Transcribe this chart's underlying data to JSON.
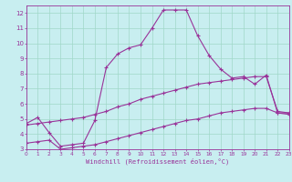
{
  "xlabel": "Windchill (Refroidissement éolien,°C)",
  "background_color": "#c8eef0",
  "grid_color": "#a0d8c8",
  "line_color": "#993399",
  "spine_color": "#993399",
  "xlim": [
    0,
    23
  ],
  "ylim": [
    3,
    12.5
  ],
  "xticks": [
    0,
    1,
    2,
    3,
    4,
    5,
    6,
    7,
    8,
    9,
    10,
    11,
    12,
    13,
    14,
    15,
    16,
    17,
    18,
    19,
    20,
    21,
    22,
    23
  ],
  "yticks": [
    3,
    4,
    5,
    6,
    7,
    8,
    9,
    10,
    11,
    12
  ],
  "line1_x": [
    0,
    1,
    2,
    3,
    4,
    5,
    6,
    7,
    8,
    9,
    10,
    11,
    12,
    13,
    14,
    15,
    16,
    17,
    18,
    19,
    20,
    21,
    22,
    23
  ],
  "line1_y": [
    4.7,
    5.1,
    4.1,
    3.2,
    3.3,
    3.4,
    4.9,
    8.4,
    9.3,
    9.7,
    9.9,
    11.0,
    12.2,
    12.2,
    12.2,
    10.5,
    9.2,
    8.3,
    7.7,
    7.8,
    7.3,
    7.9,
    5.4,
    5.4
  ],
  "line2_x": [
    0,
    1,
    2,
    3,
    4,
    5,
    6,
    7,
    8,
    9,
    10,
    11,
    12,
    13,
    14,
    15,
    16,
    17,
    18,
    19,
    20,
    21,
    22,
    23
  ],
  "line2_y": [
    4.6,
    4.7,
    4.8,
    4.9,
    5.0,
    5.1,
    5.3,
    5.5,
    5.8,
    6.0,
    6.3,
    6.5,
    6.7,
    6.9,
    7.1,
    7.3,
    7.4,
    7.5,
    7.6,
    7.7,
    7.8,
    7.8,
    5.5,
    5.4
  ],
  "line3_x": [
    0,
    1,
    2,
    3,
    4,
    5,
    6,
    7,
    8,
    9,
    10,
    11,
    12,
    13,
    14,
    15,
    16,
    17,
    18,
    19,
    20,
    21,
    22,
    23
  ],
  "line3_y": [
    3.4,
    3.5,
    3.6,
    3.0,
    3.1,
    3.2,
    3.3,
    3.5,
    3.7,
    3.9,
    4.1,
    4.3,
    4.5,
    4.7,
    4.9,
    5.0,
    5.2,
    5.4,
    5.5,
    5.6,
    5.7,
    5.7,
    5.4,
    5.3
  ]
}
